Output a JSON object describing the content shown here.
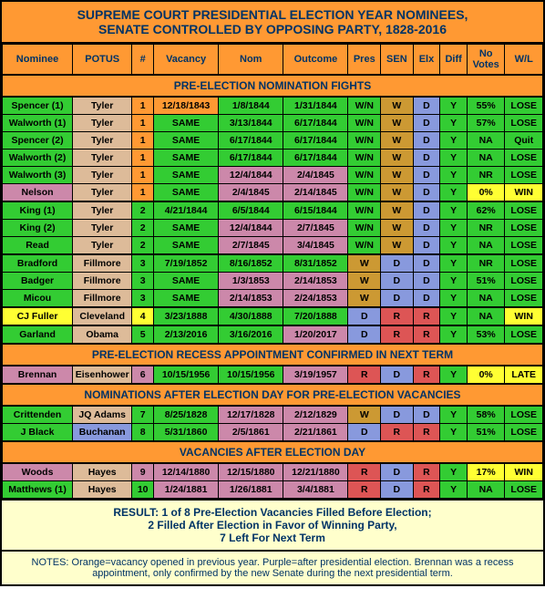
{
  "title_line1": "SUPREME COURT PRESIDENTIAL ELECTION YEAR NOMINEES,",
  "title_line2": "SENATE CONTROLLED BY OPPOSING PARTY, 1828-2016",
  "headers": [
    "Nominee",
    "POTUS",
    "#",
    "Vacancy",
    "Nom",
    "Outcome",
    "Pres",
    "SEN",
    "Elx",
    "Diff",
    "No Votes",
    "W/L"
  ],
  "sections": [
    {
      "hdr": "PRE-ELECTION NOMINATION FIGHTS",
      "rows": [
        {
          "c": [
            "Spencer (1)",
            "Tyler",
            "1",
            "12/18/1843",
            "1/8/1844",
            "1/31/1844",
            "W/N",
            "W",
            "D",
            "Y",
            "55%",
            "LOSE"
          ],
          "bg": [
            "#33cc33",
            "#ddbb99",
            "#ff9933",
            "#ff9933",
            "#33cc33",
            "#33cc33",
            "#33cc33",
            "#cc9933",
            "#8899dd",
            "#33cc33",
            "#33cc33",
            "#33cc33"
          ]
        },
        {
          "c": [
            "Walworth (1)",
            "Tyler",
            "1",
            "SAME",
            "3/13/1844",
            "6/17/1844",
            "W/N",
            "W",
            "D",
            "Y",
            "57%",
            "LOSE"
          ],
          "bg": [
            "#33cc33",
            "#ddbb99",
            "#ff9933",
            "#33cc33",
            "#33cc33",
            "#33cc33",
            "#33cc33",
            "#cc9933",
            "#8899dd",
            "#33cc33",
            "#33cc33",
            "#33cc33"
          ]
        },
        {
          "c": [
            "Spencer (2)",
            "Tyler",
            "1",
            "SAME",
            "6/17/1844",
            "6/17/1844",
            "W/N",
            "W",
            "D",
            "Y",
            "NA",
            "Quit"
          ],
          "bg": [
            "#33cc33",
            "#ddbb99",
            "#ff9933",
            "#33cc33",
            "#33cc33",
            "#33cc33",
            "#33cc33",
            "#cc9933",
            "#8899dd",
            "#33cc33",
            "#33cc33",
            "#33cc33"
          ]
        },
        {
          "c": [
            "Walworth (2)",
            "Tyler",
            "1",
            "SAME",
            "6/17/1844",
            "6/17/1844",
            "W/N",
            "W",
            "D",
            "Y",
            "NA",
            "LOSE"
          ],
          "bg": [
            "#33cc33",
            "#ddbb99",
            "#ff9933",
            "#33cc33",
            "#33cc33",
            "#33cc33",
            "#33cc33",
            "#cc9933",
            "#8899dd",
            "#33cc33",
            "#33cc33",
            "#33cc33"
          ]
        },
        {
          "c": [
            "Walworth (3)",
            "Tyler",
            "1",
            "SAME",
            "12/4/1844",
            "2/4/1845",
            "W/N",
            "W",
            "D",
            "Y",
            "NR",
            "LOSE"
          ],
          "bg": [
            "#33cc33",
            "#ddbb99",
            "#ff9933",
            "#33cc33",
            "#cc88aa",
            "#cc88aa",
            "#33cc33",
            "#cc9933",
            "#8899dd",
            "#33cc33",
            "#33cc33",
            "#33cc33"
          ]
        },
        {
          "c": [
            "Nelson",
            "Tyler",
            "1",
            "SAME",
            "2/4/1845",
            "2/14/1845",
            "W/N",
            "W",
            "D",
            "Y",
            "0%",
            "WIN"
          ],
          "bg": [
            "#cc88aa",
            "#ddbb99",
            "#ff9933",
            "#33cc33",
            "#cc88aa",
            "#cc88aa",
            "#33cc33",
            "#cc9933",
            "#8899dd",
            "#33cc33",
            "#ffff33",
            "#ffff33"
          ]
        },
        {
          "sep": true,
          "c": [
            "King (1)",
            "Tyler",
            "2",
            "4/21/1844",
            "6/5/1844",
            "6/15/1844",
            "W/N",
            "W",
            "D",
            "Y",
            "62%",
            "LOSE"
          ],
          "bg": [
            "#33cc33",
            "#ddbb99",
            "#33cc33",
            "#33cc33",
            "#33cc33",
            "#33cc33",
            "#33cc33",
            "#cc9933",
            "#8899dd",
            "#33cc33",
            "#33cc33",
            "#33cc33"
          ]
        },
        {
          "c": [
            "King (2)",
            "Tyler",
            "2",
            "SAME",
            "12/4/1844",
            "2/7/1845",
            "W/N",
            "W",
            "D",
            "Y",
            "NR",
            "LOSE"
          ],
          "bg": [
            "#33cc33",
            "#ddbb99",
            "#33cc33",
            "#33cc33",
            "#cc88aa",
            "#cc88aa",
            "#33cc33",
            "#cc9933",
            "#8899dd",
            "#33cc33",
            "#33cc33",
            "#33cc33"
          ]
        },
        {
          "c": [
            "Read",
            "Tyler",
            "2",
            "SAME",
            "2/7/1845",
            "3/4/1845",
            "W/N",
            "W",
            "D",
            "Y",
            "NA",
            "LOSE"
          ],
          "bg": [
            "#33cc33",
            "#ddbb99",
            "#33cc33",
            "#33cc33",
            "#cc88aa",
            "#cc88aa",
            "#33cc33",
            "#cc9933",
            "#8899dd",
            "#33cc33",
            "#33cc33",
            "#33cc33"
          ]
        },
        {
          "sep": true,
          "c": [
            "Bradford",
            "Fillmore",
            "3",
            "7/19/1852",
            "8/16/1852",
            "8/31/1852",
            "W",
            "D",
            "D",
            "Y",
            "NR",
            "LOSE"
          ],
          "bg": [
            "#33cc33",
            "#ddbb99",
            "#33cc33",
            "#33cc33",
            "#33cc33",
            "#33cc33",
            "#cc9933",
            "#8899dd",
            "#8899dd",
            "#33cc33",
            "#33cc33",
            "#33cc33"
          ]
        },
        {
          "c": [
            "Badger",
            "Fillmore",
            "3",
            "SAME",
            "1/3/1853",
            "2/14/1853",
            "W",
            "D",
            "D",
            "Y",
            "51%",
            "LOSE"
          ],
          "bg": [
            "#33cc33",
            "#ddbb99",
            "#33cc33",
            "#33cc33",
            "#cc88aa",
            "#cc88aa",
            "#cc9933",
            "#8899dd",
            "#8899dd",
            "#33cc33",
            "#33cc33",
            "#33cc33"
          ]
        },
        {
          "c": [
            "Micou",
            "Fillmore",
            "3",
            "SAME",
            "2/14/1853",
            "2/24/1853",
            "W",
            "D",
            "D",
            "Y",
            "NA",
            "LOSE"
          ],
          "bg": [
            "#33cc33",
            "#ddbb99",
            "#33cc33",
            "#33cc33",
            "#cc88aa",
            "#cc88aa",
            "#cc9933",
            "#8899dd",
            "#8899dd",
            "#33cc33",
            "#33cc33",
            "#33cc33"
          ]
        },
        {
          "sep": true,
          "c": [
            "CJ Fuller",
            "Cleveland",
            "4",
            "3/23/1888",
            "4/30/1888",
            "7/20/1888",
            "D",
            "R",
            "R",
            "Y",
            "NA",
            "WIN"
          ],
          "bg": [
            "#ffff33",
            "#ddbb99",
            "#ffff33",
            "#33cc33",
            "#33cc33",
            "#33cc33",
            "#8899dd",
            "#dd5555",
            "#dd5555",
            "#33cc33",
            "#33cc33",
            "#ffff33"
          ]
        },
        {
          "sep": true,
          "c": [
            "Garland",
            "Obama",
            "5",
            "2/13/2016",
            "3/16/2016",
            "1/20/2017",
            "D",
            "R",
            "R",
            "Y",
            "53%",
            "LOSE"
          ],
          "bg": [
            "#33cc33",
            "#ddbb99",
            "#33cc33",
            "#33cc33",
            "#33cc33",
            "#cc88aa",
            "#8899dd",
            "#dd5555",
            "#dd5555",
            "#33cc33",
            "#33cc33",
            "#33cc33"
          ]
        }
      ]
    },
    {
      "hdr": "PRE-ELECTION RECESS APPOINTMENT CONFIRMED IN NEXT TERM",
      "rows": [
        {
          "c": [
            "Brennan",
            "Eisenhower",
            "6",
            "10/15/1956",
            "10/15/1956",
            "3/19/1957",
            "R",
            "D",
            "R",
            "Y",
            "0%",
            "LATE"
          ],
          "bg": [
            "#cc88aa",
            "#ddbb99",
            "#cc88aa",
            "#33cc33",
            "#33cc33",
            "#cc88aa",
            "#dd5555",
            "#8899dd",
            "#dd5555",
            "#33cc33",
            "#ffff33",
            "#ffff33"
          ]
        }
      ]
    },
    {
      "hdr": "NOMINATIONS AFTER ELECTION DAY FOR PRE-ELECTION VACANCIES",
      "rows": [
        {
          "c": [
            "Crittenden",
            "JQ Adams",
            "7",
            "8/25/1828",
            "12/17/1828",
            "2/12/1829",
            "W",
            "D",
            "D",
            "Y",
            "58%",
            "LOSE"
          ],
          "bg": [
            "#33cc33",
            "#ddbb99",
            "#33cc33",
            "#33cc33",
            "#cc88aa",
            "#cc88aa",
            "#cc9933",
            "#8899dd",
            "#8899dd",
            "#33cc33",
            "#33cc33",
            "#33cc33"
          ]
        },
        {
          "c": [
            "J Black",
            "Buchanan",
            "8",
            "5/31/1860",
            "2/5/1861",
            "2/21/1861",
            "D",
            "R",
            "R",
            "Y",
            "51%",
            "LOSE"
          ],
          "bg": [
            "#33cc33",
            "#8899dd",
            "#33cc33",
            "#33cc33",
            "#cc88aa",
            "#cc88aa",
            "#8899dd",
            "#dd5555",
            "#dd5555",
            "#33cc33",
            "#33cc33",
            "#33cc33"
          ]
        }
      ]
    },
    {
      "hdr": "VACANCIES AFTER ELECTION DAY",
      "rows": [
        {
          "c": [
            "Woods",
            "Hayes",
            "9",
            "12/14/1880",
            "12/15/1880",
            "12/21/1880",
            "R",
            "D",
            "R",
            "Y",
            "17%",
            "WIN"
          ],
          "bg": [
            "#cc88aa",
            "#ddbb99",
            "#cc88aa",
            "#cc88aa",
            "#cc88aa",
            "#cc88aa",
            "#dd5555",
            "#8899dd",
            "#dd5555",
            "#33cc33",
            "#ffff33",
            "#ffff33"
          ]
        },
        {
          "c": [
            "Matthews (1)",
            "Hayes",
            "10",
            "1/24/1881",
            "1/26/1881",
            "3/4/1881",
            "R",
            "D",
            "R",
            "Y",
            "NA",
            "LOSE"
          ],
          "bg": [
            "#33cc33",
            "#ddbb99",
            "#33cc33",
            "#cc88aa",
            "#cc88aa",
            "#cc88aa",
            "#dd5555",
            "#8899dd",
            "#dd5555",
            "#33cc33",
            "#33cc33",
            "#33cc33"
          ]
        }
      ]
    }
  ],
  "result_line1": "RESULT: 1 of 8 Pre-Election Vacancies Filled Before Election;",
  "result_line2": "2 Filled After Election in Favor of Winning Party,",
  "result_line3": "7 Left For Next Term",
  "notes": "NOTES: Orange=vacancy opened in previous year. Purple=after presidential election. Brennan was a recess appointment, only confirmed by the new Senate during the next presidential term.",
  "col_widths": [
    "13%",
    "11%",
    "4%",
    "12%",
    "12%",
    "12%",
    "6%",
    "6%",
    "5%",
    "5%",
    "7%",
    "7%"
  ]
}
